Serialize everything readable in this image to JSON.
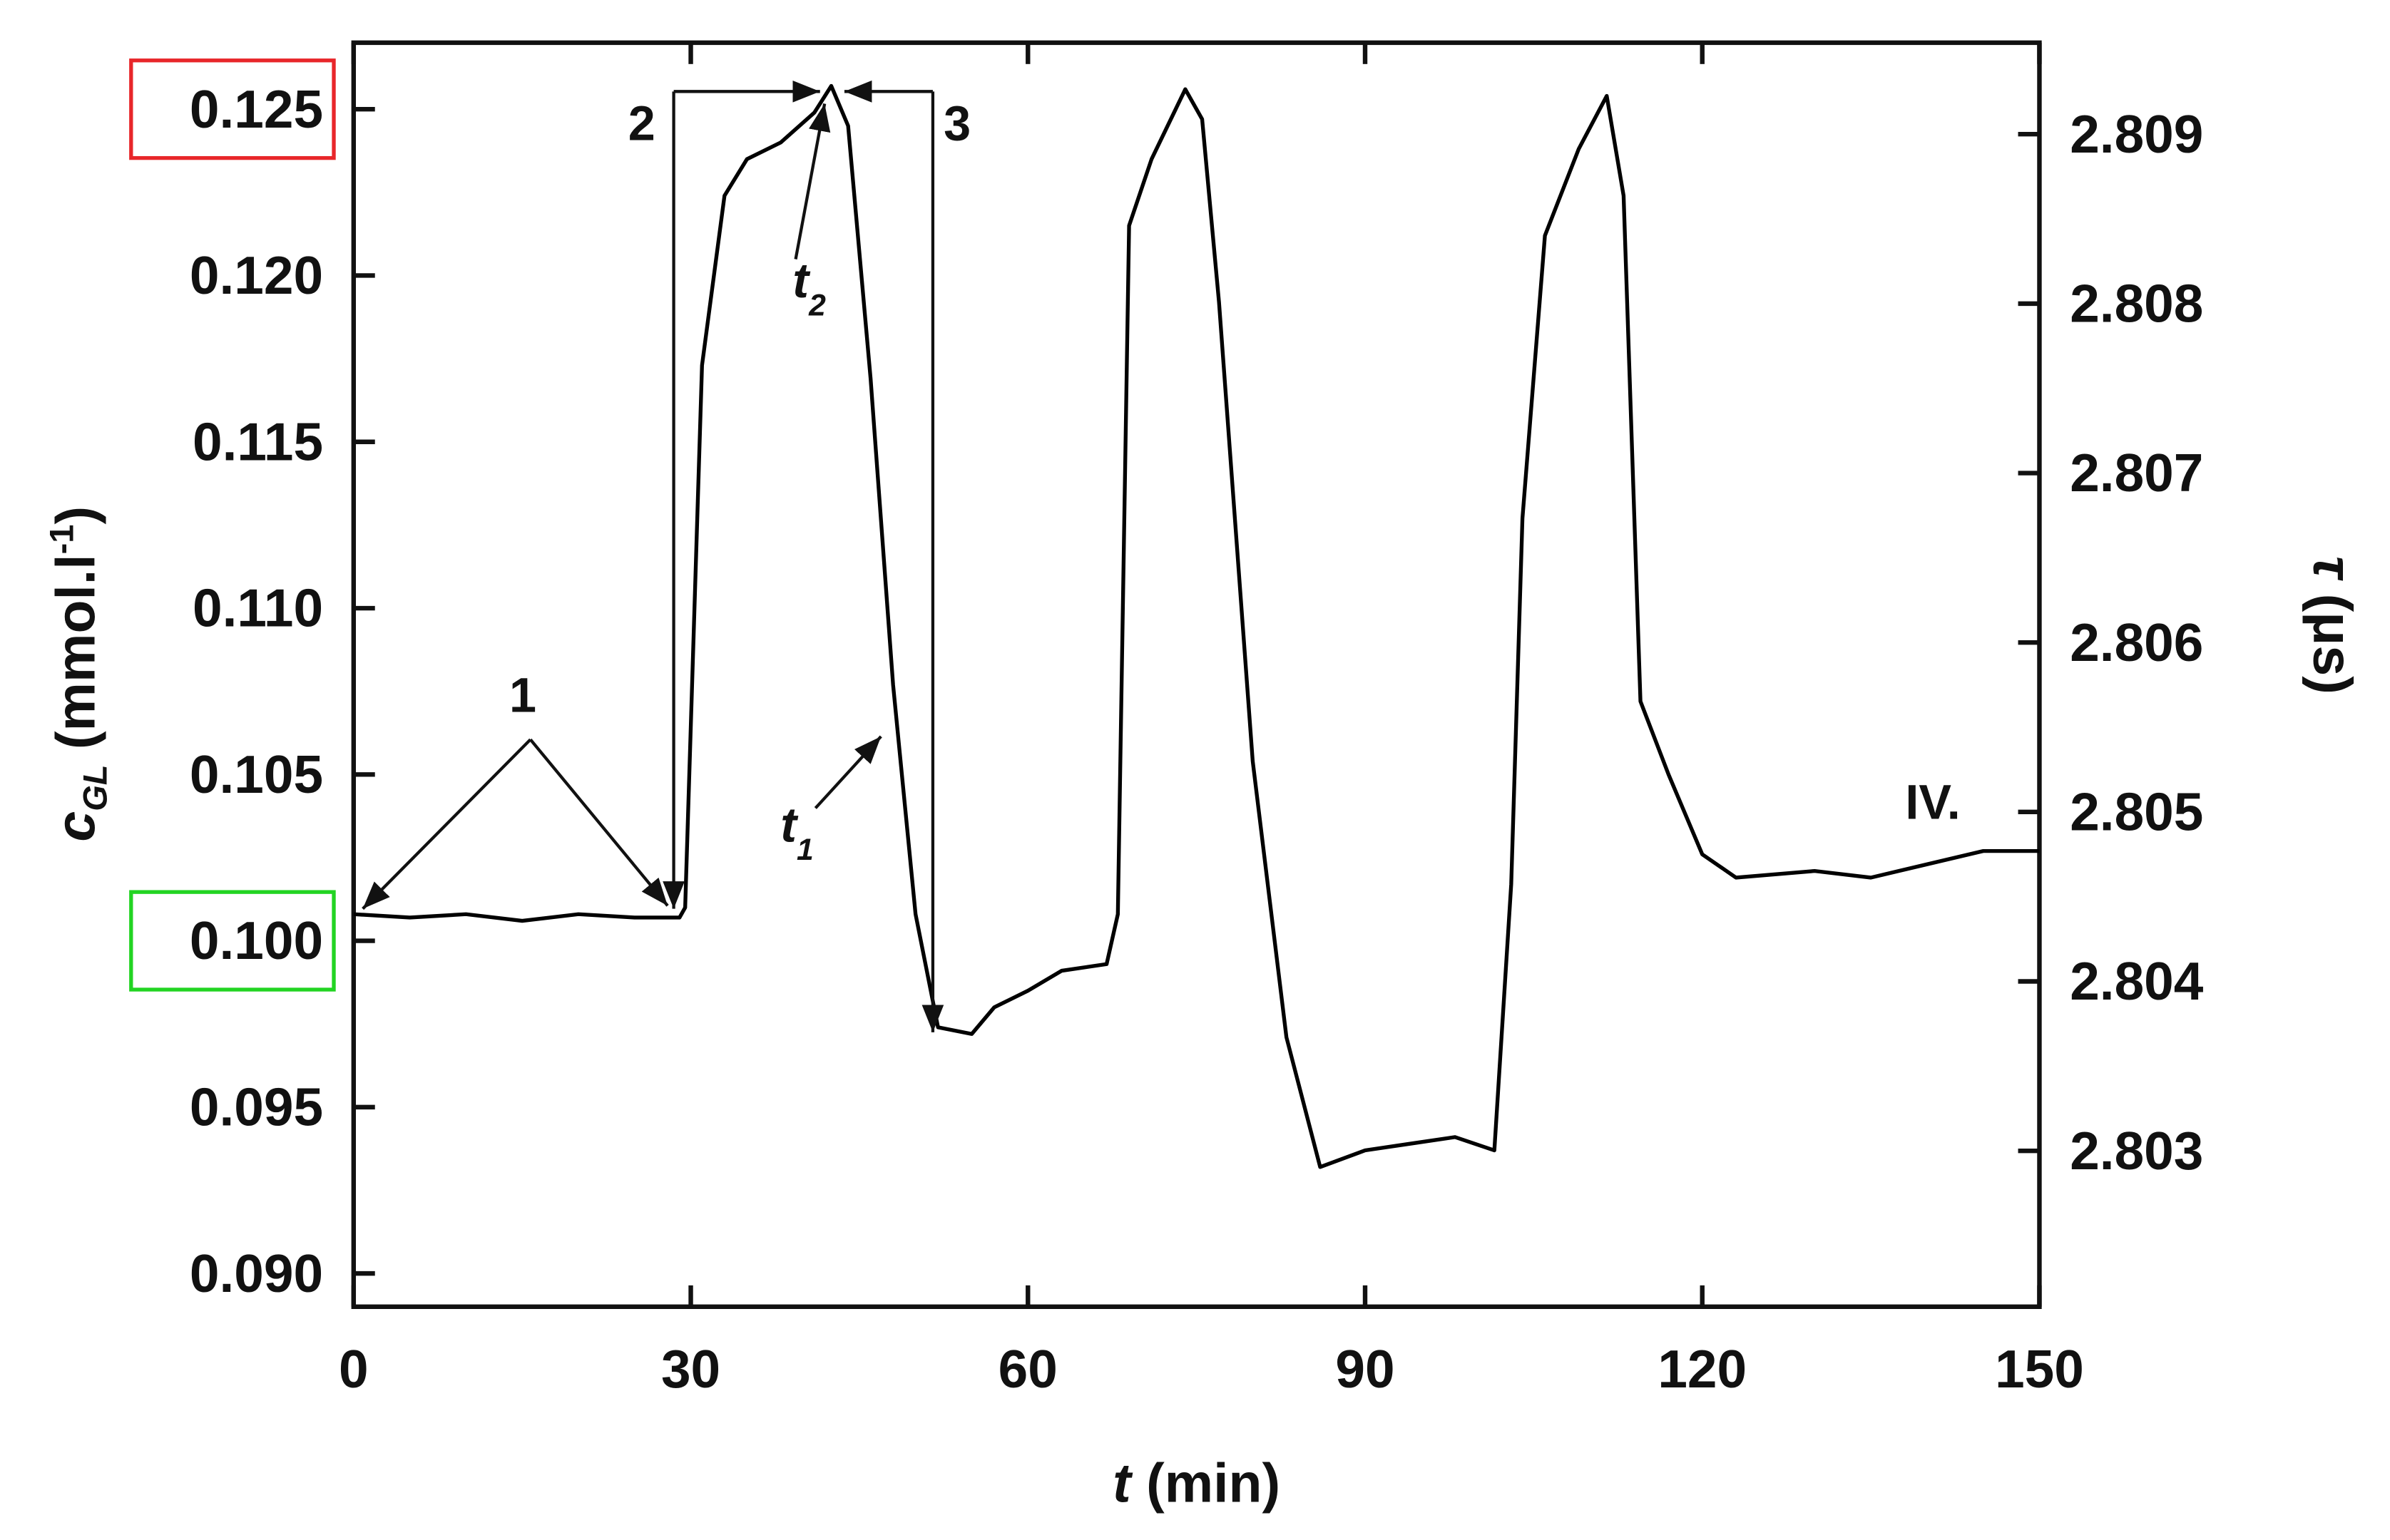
{
  "chart_data": {
    "type": "line",
    "x_label": {
      "italic": "t",
      "rest": "(min)"
    },
    "y_label": {
      "main": "c",
      "sub": "GL",
      "rest": "(mmol.l",
      "sup": "-1",
      "close": ")"
    },
    "y2_label": {
      "italic": "τ",
      "rest": "(μs)"
    },
    "x": [
      0,
      5,
      10,
      15,
      20,
      25,
      29,
      29.5,
      31,
      33,
      35,
      38,
      41,
      42.5,
      44,
      46,
      48,
      50,
      52,
      55,
      57,
      60,
      63,
      67,
      68,
      69,
      71,
      74,
      75.5,
      77,
      80,
      83,
      86,
      90,
      94,
      98,
      101.5,
      103,
      104,
      106,
      109,
      111.5,
      113,
      114.5,
      117,
      120,
      123,
      130,
      135,
      140,
      145,
      150
    ],
    "series": [
      {
        "color": "#000000",
        "values": [
          0.1008,
          0.1007,
          0.1008,
          0.1006,
          0.1008,
          0.1007,
          0.1007,
          0.101,
          0.1173,
          0.1224,
          0.1235,
          0.124,
          0.1249,
          0.1257,
          0.1245,
          0.1169,
          0.1077,
          0.1008,
          0.0974,
          0.0972,
          0.098,
          0.0985,
          0.0991,
          0.0993,
          0.1008,
          0.1215,
          0.1235,
          0.1256,
          0.1247,
          0.1192,
          0.1054,
          0.0971,
          0.0932,
          0.0937,
          0.0939,
          0.0941,
          0.0937,
          0.1017,
          0.1127,
          0.1212,
          0.1238,
          0.1254,
          0.1224,
          0.1072,
          0.105,
          0.1026,
          0.1019,
          0.1021,
          0.1019,
          0.1023,
          0.1027,
          0.1027
        ]
      }
    ],
    "xlim": [
      0,
      150
    ],
    "xticks": [
      0,
      30,
      60,
      90,
      120,
      150
    ],
    "ylim": [
      0.089,
      0.127
    ],
    "yticks": [
      {
        "value": 0.09,
        "label": "0.090"
      },
      0.095,
      {
        "value": 0.1,
        "label": "0.100"
      },
      0.105,
      {
        "value": 0.11,
        "label": "0.110"
      },
      0.115,
      {
        "value": 0.12,
        "label": "0.120"
      },
      0.125
    ],
    "y2lim": [
      2.80208,
      2.80954
    ],
    "y2ticks": [
      2.803,
      2.804,
      2.805,
      2.806,
      2.807,
      2.808,
      2.809
    ],
    "tick_highlights": [
      {
        "value": 0.125,
        "color": "#e8262a"
      },
      {
        "value": 0.1,
        "color": "#22d422"
      }
    ],
    "annotations": [
      {
        "text": "1"
      },
      {
        "text": "2"
      },
      {
        "text": "3"
      },
      {
        "text": "t",
        "sub": "2"
      },
      {
        "text": "t",
        "sub": "1"
      },
      {
        "text": "IV."
      }
    ]
  }
}
